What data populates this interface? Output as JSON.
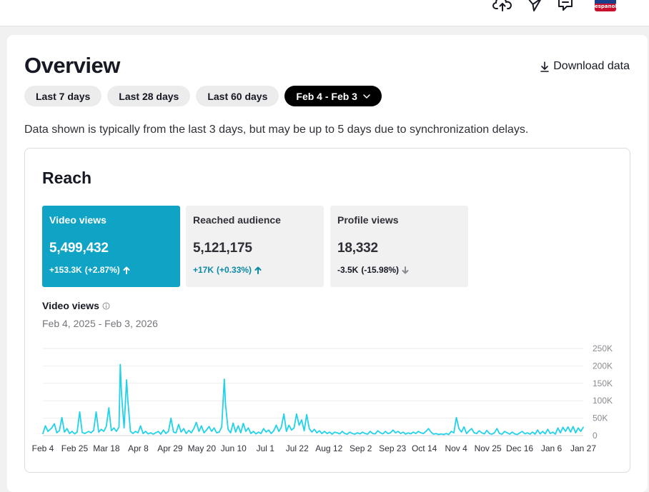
{
  "topbar": {
    "icons": [
      "upload-icon",
      "send-icon",
      "comment-icon"
    ],
    "avatar_text": "espanol"
  },
  "overview": {
    "title": "Overview",
    "download_label": "Download data",
    "ranges": [
      "Last 7 days",
      "Last 28 days",
      "Last 60 days"
    ],
    "selected_range": "Feb 4 - Feb 3",
    "note": "Data shown is typically from the last 3 days, but may be up to 5 days due to synchronization delays."
  },
  "reach": {
    "title": "Reach",
    "metrics": [
      {
        "label": "Video views",
        "value": "5,499,432",
        "change": "+153.3K",
        "pct": "(+2.87%)",
        "trend": "up"
      },
      {
        "label": "Reached audience",
        "value": "5,121,175",
        "change": "+17K",
        "pct": "(+0.33%)",
        "trend": "up"
      },
      {
        "label": "Profile views",
        "value": "18,332",
        "change": "-3.5K",
        "pct": "(-15.98%)",
        "trend": "down"
      }
    ]
  },
  "chart_data": {
    "type": "line",
    "title": "Video views",
    "subtitle": "Feb 4, 2025 - Feb 3, 2026",
    "x_ticks": [
      "Feb 4",
      "Feb 25",
      "Mar 18",
      "Apr 8",
      "Apr 29",
      "May 20",
      "Jun 10",
      "Jul 1",
      "Jul 22",
      "Aug 12",
      "Sep 2",
      "Sep 23",
      "Oct 14",
      "Nov 4",
      "Nov 25",
      "Dec 16",
      "Jan 6",
      "Jan 27"
    ],
    "y_ticks": [
      "0",
      "50K",
      "100K",
      "150K",
      "200K",
      "250K"
    ],
    "ylim": [
      0,
      250000
    ],
    "series": [
      {
        "name": "Video views",
        "color": "#21d2e8",
        "points": [
          [
            0,
            6000
          ],
          [
            2,
            28000
          ],
          [
            4,
            12000
          ],
          [
            7,
            22000
          ],
          [
            9,
            34000
          ],
          [
            11,
            8000
          ],
          [
            13,
            14000
          ],
          [
            15,
            52000
          ],
          [
            17,
            10000
          ],
          [
            19,
            20000
          ],
          [
            21,
            6000
          ],
          [
            23,
            12000
          ],
          [
            25,
            5000
          ],
          [
            27,
            10000
          ],
          [
            29,
            68000
          ],
          [
            31,
            9000
          ],
          [
            33,
            6000
          ],
          [
            36,
            12000
          ],
          [
            38,
            8000
          ],
          [
            40,
            15000
          ],
          [
            42,
            68000
          ],
          [
            44,
            10000
          ],
          [
            46,
            18000
          ],
          [
            48,
            12000
          ],
          [
            50,
            26000
          ],
          [
            52,
            80000
          ],
          [
            54,
            14000
          ],
          [
            56,
            22000
          ],
          [
            58,
            12000
          ],
          [
            60,
            25000
          ],
          [
            61,
            204000
          ],
          [
            62,
            120000
          ],
          [
            64,
            22000
          ],
          [
            66,
            160000
          ],
          [
            67,
            100000
          ],
          [
            69,
            12000
          ],
          [
            71,
            6000
          ],
          [
            73,
            12000
          ],
          [
            75,
            8000
          ],
          [
            77,
            28000
          ],
          [
            79,
            6000
          ],
          [
            81,
            12000
          ],
          [
            83,
            5000
          ],
          [
            85,
            8000
          ],
          [
            87,
            4000
          ],
          [
            89,
            8000
          ],
          [
            91,
            12000
          ],
          [
            93,
            4000
          ],
          [
            95,
            16000
          ],
          [
            97,
            6000
          ],
          [
            99,
            12000
          ],
          [
            101,
            50000
          ],
          [
            103,
            10000
          ],
          [
            105,
            8000
          ],
          [
            107,
            32000
          ],
          [
            109,
            10000
          ],
          [
            111,
            20000
          ],
          [
            113,
            6000
          ],
          [
            115,
            15000
          ],
          [
            117,
            8000
          ],
          [
            119,
            20000
          ],
          [
            121,
            38000
          ],
          [
            123,
            12000
          ],
          [
            125,
            28000
          ],
          [
            127,
            8000
          ],
          [
            129,
            16000
          ],
          [
            131,
            26000
          ],
          [
            133,
            12000
          ],
          [
            135,
            22000
          ],
          [
            137,
            8000
          ],
          [
            139,
            10000
          ],
          [
            141,
            25000
          ],
          [
            143,
            162000
          ],
          [
            144,
            90000
          ],
          [
            146,
            18000
          ],
          [
            148,
            8000
          ],
          [
            150,
            36000
          ],
          [
            152,
            10000
          ],
          [
            154,
            28000
          ],
          [
            156,
            8000
          ],
          [
            158,
            35000
          ],
          [
            160,
            12000
          ],
          [
            162,
            22000
          ],
          [
            164,
            6000
          ],
          [
            166,
            12000
          ],
          [
            168,
            5000
          ],
          [
            170,
            10000
          ],
          [
            172,
            6000
          ],
          [
            174,
            20000
          ],
          [
            176,
            10000
          ],
          [
            178,
            16000
          ],
          [
            180,
            6000
          ],
          [
            182,
            14000
          ],
          [
            184,
            30000
          ],
          [
            186,
            12000
          ],
          [
            188,
            24000
          ],
          [
            190,
            62000
          ],
          [
            192,
            12000
          ],
          [
            194,
            30000
          ],
          [
            196,
            16000
          ],
          [
            198,
            22000
          ],
          [
            200,
            62000
          ],
          [
            202,
            30000
          ],
          [
            204,
            45000
          ],
          [
            206,
            14000
          ],
          [
            208,
            60000
          ],
          [
            210,
            20000
          ],
          [
            212,
            10000
          ],
          [
            214,
            18000
          ],
          [
            216,
            8000
          ],
          [
            218,
            14000
          ],
          [
            220,
            6000
          ],
          [
            222,
            12000
          ],
          [
            224,
            6000
          ],
          [
            226,
            10000
          ],
          [
            228,
            4000
          ],
          [
            230,
            10000
          ],
          [
            232,
            8000
          ],
          [
            234,
            5000
          ],
          [
            236,
            12000
          ],
          [
            238,
            6000
          ],
          [
            240,
            4000
          ],
          [
            242,
            10000
          ],
          [
            244,
            6000
          ],
          [
            246,
            4000
          ],
          [
            248,
            8000
          ],
          [
            250,
            5000
          ],
          [
            252,
            10000
          ],
          [
            254,
            6000
          ],
          [
            256,
            4000
          ],
          [
            258,
            12000
          ],
          [
            260,
            6000
          ],
          [
            262,
            5000
          ],
          [
            264,
            14000
          ],
          [
            266,
            8000
          ],
          [
            268,
            5000
          ],
          [
            270,
            12000
          ],
          [
            272,
            6000
          ],
          [
            274,
            8000
          ],
          [
            276,
            16000
          ],
          [
            278,
            8000
          ],
          [
            280,
            12000
          ],
          [
            282,
            6000
          ],
          [
            284,
            10000
          ],
          [
            286,
            4000
          ],
          [
            288,
            8000
          ],
          [
            290,
            5000
          ],
          [
            292,
            10000
          ],
          [
            294,
            6000
          ],
          [
            296,
            12000
          ],
          [
            298,
            8000
          ],
          [
            300,
            6000
          ],
          [
            302,
            12000
          ],
          [
            304,
            20000
          ],
          [
            306,
            10000
          ],
          [
            308,
            4000
          ],
          [
            310,
            6000
          ],
          [
            312,
            3000
          ],
          [
            314,
            5000
          ],
          [
            316,
            3000
          ],
          [
            318,
            6000
          ],
          [
            320,
            3000
          ],
          [
            322,
            12000
          ],
          [
            324,
            8000
          ],
          [
            326,
            52000
          ],
          [
            328,
            20000
          ],
          [
            330,
            10000
          ],
          [
            332,
            25000
          ],
          [
            334,
            6000
          ],
          [
            336,
            14000
          ],
          [
            338,
            20000
          ],
          [
            340,
            8000
          ],
          [
            342,
            6000
          ],
          [
            344,
            14000
          ],
          [
            346,
            8000
          ],
          [
            348,
            5000
          ],
          [
            350,
            15000
          ],
          [
            352,
            6000
          ],
          [
            354,
            4000
          ],
          [
            356,
            8000
          ],
          [
            358,
            20000
          ],
          [
            360,
            6000
          ],
          [
            362,
            4000
          ],
          [
            364,
            12000
          ],
          [
            366,
            8000
          ],
          [
            368,
            4000
          ],
          [
            370,
            10000
          ],
          [
            372,
            5000
          ],
          [
            374,
            3000
          ],
          [
            376,
            8000
          ],
          [
            378,
            12000
          ],
          [
            380,
            5000
          ],
          [
            382,
            8000
          ],
          [
            384,
            4000
          ],
          [
            386,
            10000
          ],
          [
            388,
            4000
          ],
          [
            390,
            16000
          ],
          [
            392,
            5000
          ],
          [
            394,
            12000
          ],
          [
            396,
            5000
          ],
          [
            398,
            18000
          ],
          [
            400,
            6000
          ],
          [
            402,
            10000
          ],
          [
            404,
            4000
          ],
          [
            406,
            22000
          ],
          [
            408,
            8000
          ],
          [
            410,
            24000
          ],
          [
            412,
            12000
          ],
          [
            414,
            25000
          ],
          [
            416,
            10000
          ],
          [
            418,
            26000
          ],
          [
            420,
            8000
          ],
          [
            422,
            22000
          ],
          [
            424,
            12000
          ],
          [
            426,
            24000
          ]
        ]
      }
    ]
  }
}
